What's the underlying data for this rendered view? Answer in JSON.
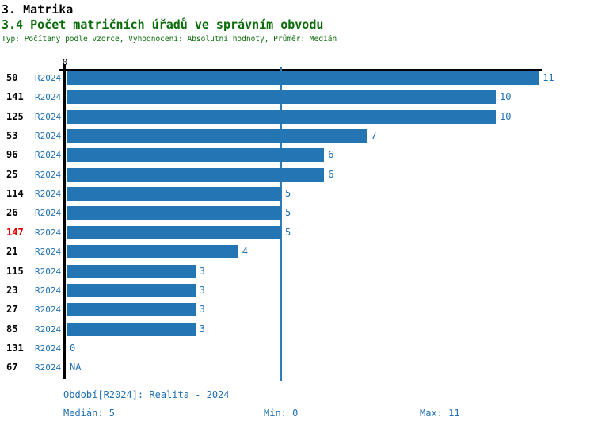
{
  "header": {
    "title": "3. Matrika",
    "subtitle": "3.4 Počet matričních úřadů ve správním obvodu",
    "meta": "Typ: Počítaný podle vzorce, Vyhodnocení: Absolutní hodnoty, Průměr: Medián"
  },
  "chart_data": {
    "type": "bar",
    "orientation": "horizontal",
    "title": "3.4 Počet matričních úřadů ve správním obvodu",
    "xlim": [
      0,
      11
    ],
    "axis_origin_label": "0",
    "median_value": 5,
    "grid": false,
    "rows": [
      {
        "id": "50",
        "period": "R2024",
        "value": 11,
        "label": "11",
        "highlight": false
      },
      {
        "id": "141",
        "period": "R2024",
        "value": 10,
        "label": "10",
        "highlight": false
      },
      {
        "id": "125",
        "period": "R2024",
        "value": 10,
        "label": "10",
        "highlight": false
      },
      {
        "id": "53",
        "period": "R2024",
        "value": 7,
        "label": "7",
        "highlight": false
      },
      {
        "id": "96",
        "period": "R2024",
        "value": 6,
        "label": "6",
        "highlight": false
      },
      {
        "id": "25",
        "period": "R2024",
        "value": 6,
        "label": "6",
        "highlight": false
      },
      {
        "id": "114",
        "period": "R2024",
        "value": 5,
        "label": "5",
        "highlight": false
      },
      {
        "id": "26",
        "period": "R2024",
        "value": 5,
        "label": "5",
        "highlight": false
      },
      {
        "id": "147",
        "period": "R2024",
        "value": 5,
        "label": "5",
        "highlight": true
      },
      {
        "id": "21",
        "period": "R2024",
        "value": 4,
        "label": "4",
        "highlight": false
      },
      {
        "id": "115",
        "period": "R2024",
        "value": 3,
        "label": "3",
        "highlight": false
      },
      {
        "id": "23",
        "period": "R2024",
        "value": 3,
        "label": "3",
        "highlight": false
      },
      {
        "id": "27",
        "period": "R2024",
        "value": 3,
        "label": "3",
        "highlight": false
      },
      {
        "id": "85",
        "period": "R2024",
        "value": 3,
        "label": "3",
        "highlight": false
      },
      {
        "id": "131",
        "period": "R2024",
        "value": 0,
        "label": "0",
        "highlight": false
      },
      {
        "id": "67",
        "period": "R2024",
        "value": null,
        "label": "NA",
        "highlight": false
      }
    ],
    "colors": {
      "bar": "#2475b4",
      "median_line": "#2e7cb8",
      "text_blue": "#1f6fb4",
      "highlight_red": "#e00000",
      "axis_black": "#000000",
      "title_green": "#0a6b0a"
    }
  },
  "footer": {
    "period_line": "Období[R2024]: Realita - 2024",
    "median": "Medián: 5",
    "min": "Min: 0",
    "max": "Max: 11"
  }
}
